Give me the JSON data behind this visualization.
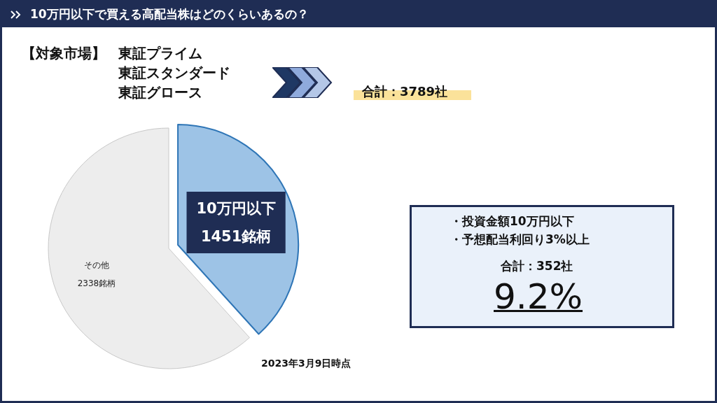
{
  "chart_data": {
    "type": "pie",
    "title": "10万円以下で買える高配当株はどのくらいあるの？",
    "categories": [
      "10万円以下",
      "その他"
    ],
    "values": [
      1451,
      2338
    ],
    "value_labels": [
      "1451銘柄",
      "2338銘柄"
    ],
    "colors": [
      "#9dc3e6",
      "#ededed"
    ],
    "annotations": [
      "【対象市場】",
      "東証プライム",
      "東証スタンダード",
      "東証グロース",
      "合計：3789社",
      "・投資金額10万円以下",
      "・予想配当利回り3%以上",
      "合計：352社",
      "9.2%",
      "2023年3月9日時点"
    ]
  }
}
